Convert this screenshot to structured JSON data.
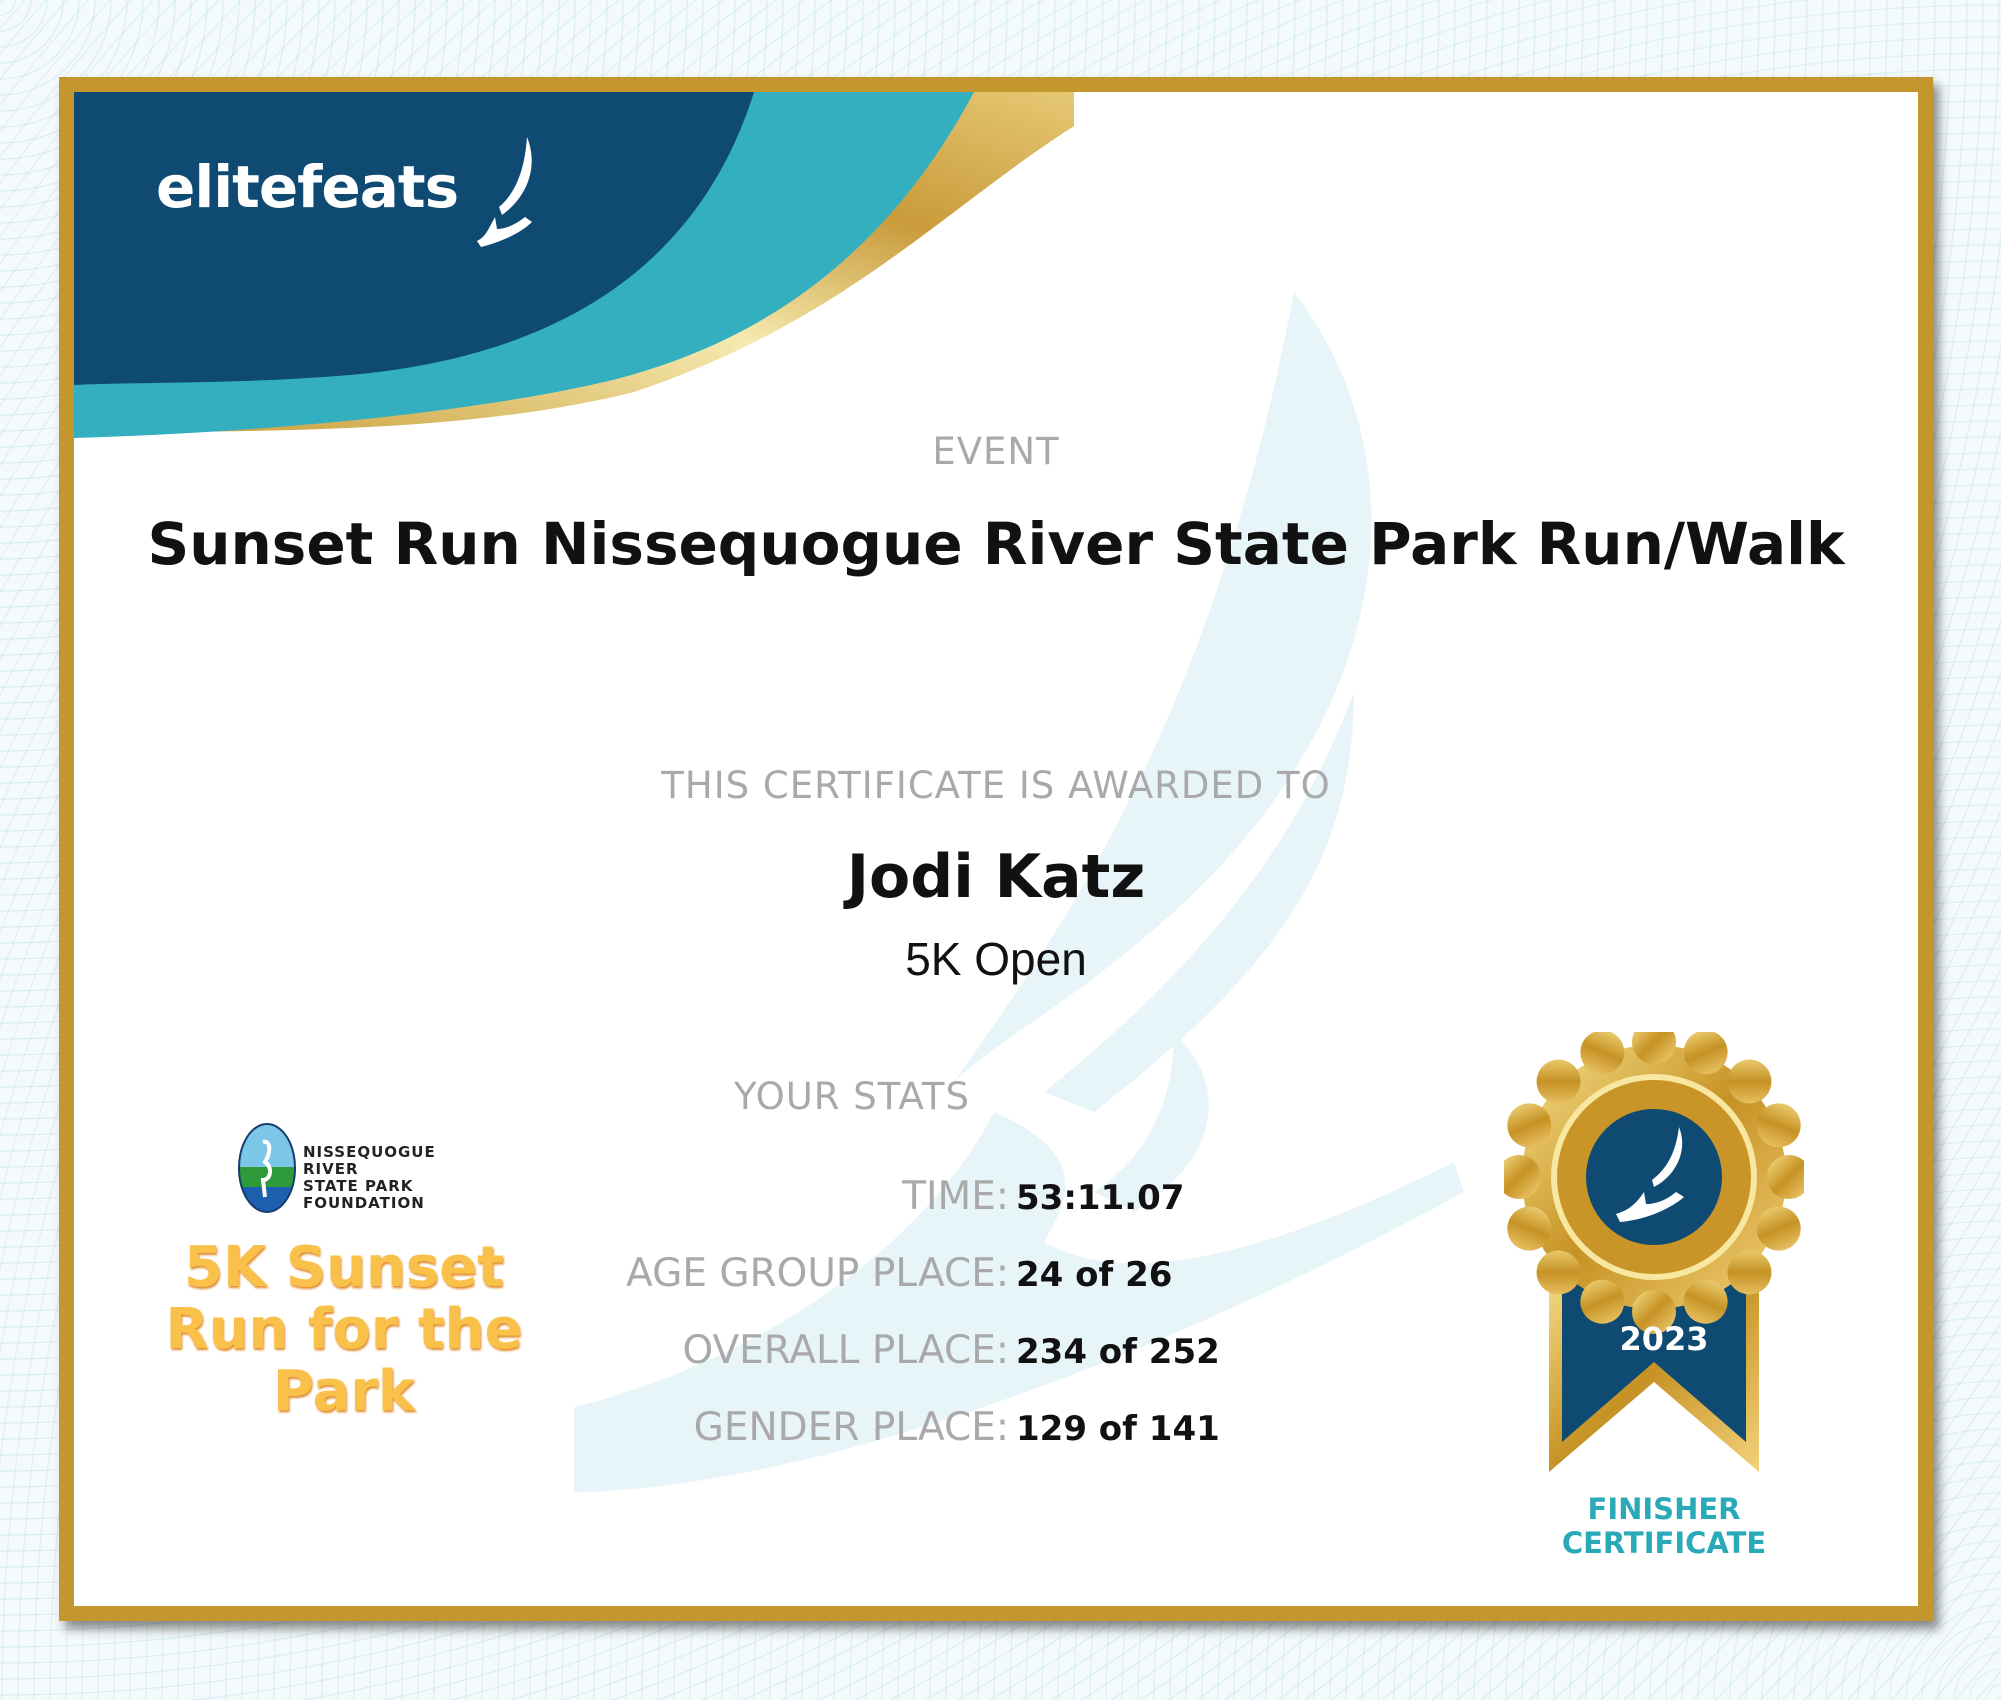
{
  "brand": {
    "logo_text": "elitefeats",
    "colors": {
      "navy": "#0f4a72",
      "teal": "#33afc0",
      "gold": "#c4962e"
    }
  },
  "event": {
    "label": "EVENT",
    "title": "Sunset Run Nissequogue River State Park Run/Walk"
  },
  "award": {
    "label": "THIS CERTIFICATE IS AWARDED TO",
    "name": "Jodi Katz",
    "division": "5K Open"
  },
  "stats": {
    "label": "YOUR STATS",
    "rows": [
      {
        "label": "TIME:",
        "value": "53:11.07"
      },
      {
        "label": "AGE GROUP PLACE:",
        "value": "24 of 26"
      },
      {
        "label": "OVERALL PLACE:",
        "value": "234 of 252"
      },
      {
        "label": "GENDER PLACE:",
        "value": "129 of 141"
      }
    ]
  },
  "organizer": {
    "logo_lines": [
      "NISSEQUOGUE",
      "RIVER",
      "STATE PARK",
      "FOUNDATION"
    ],
    "race_logo_text": "5K Sunset Run for the Park"
  },
  "badge": {
    "year": "2023",
    "caption_line1": "FINISHER",
    "caption_line2": "CERTIFICATE"
  }
}
